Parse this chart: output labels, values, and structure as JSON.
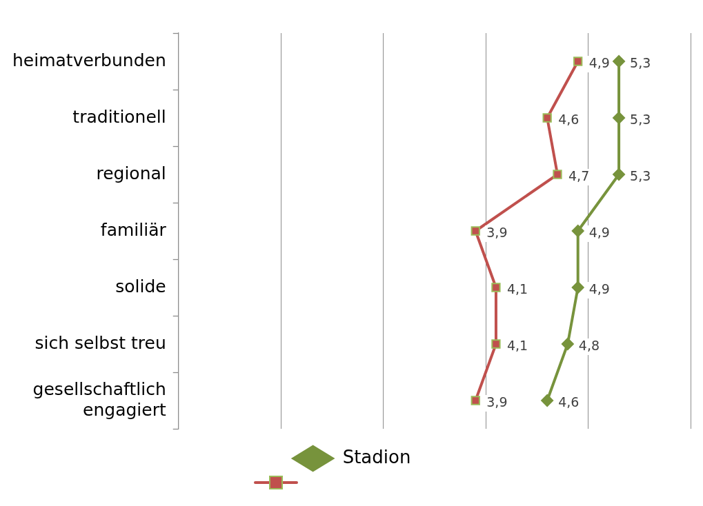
{
  "chart_data": {
    "type": "line",
    "orientation": "horizontal",
    "categories": [
      "heimatverbunden",
      "traditionell",
      "regional",
      "familiär",
      "solide",
      "sich selbst treu",
      "gesellschaftlich engagiert"
    ],
    "series": [
      {
        "name": "Stadion",
        "color": "#77933c",
        "marker": "diamond",
        "values": [
          5.3,
          5.3,
          5.3,
          4.9,
          4.9,
          4.8,
          4.6
        ],
        "value_labels": [
          "5,3",
          "5,3",
          "5,3",
          "4,9",
          "4,9",
          "4,8",
          "4,6"
        ]
      },
      {
        "color": "#c0504d",
        "marker": "square",
        "values": [
          4.9,
          4.6,
          4.7,
          3.9,
          4.1,
          4.1,
          3.9
        ],
        "value_labels": [
          "4,9",
          "4,6",
          "4,7",
          "3,9",
          "4,1",
          "4,1",
          "3,9"
        ]
      }
    ],
    "xlim": [
      1,
      6
    ],
    "xticks": [
      {
        "value": 1,
        "label": null
      },
      {
        "value": 2,
        "label": null
      },
      {
        "value": 3,
        "label": null
      },
      {
        "value": 4,
        "label": null
      },
      {
        "value": 5,
        "label": null
      },
      {
        "value": 6,
        "label": null
      }
    ],
    "tick_labels": "y",
    "grid": "x",
    "legend": "bottom",
    "line_style": "solid"
  }
}
